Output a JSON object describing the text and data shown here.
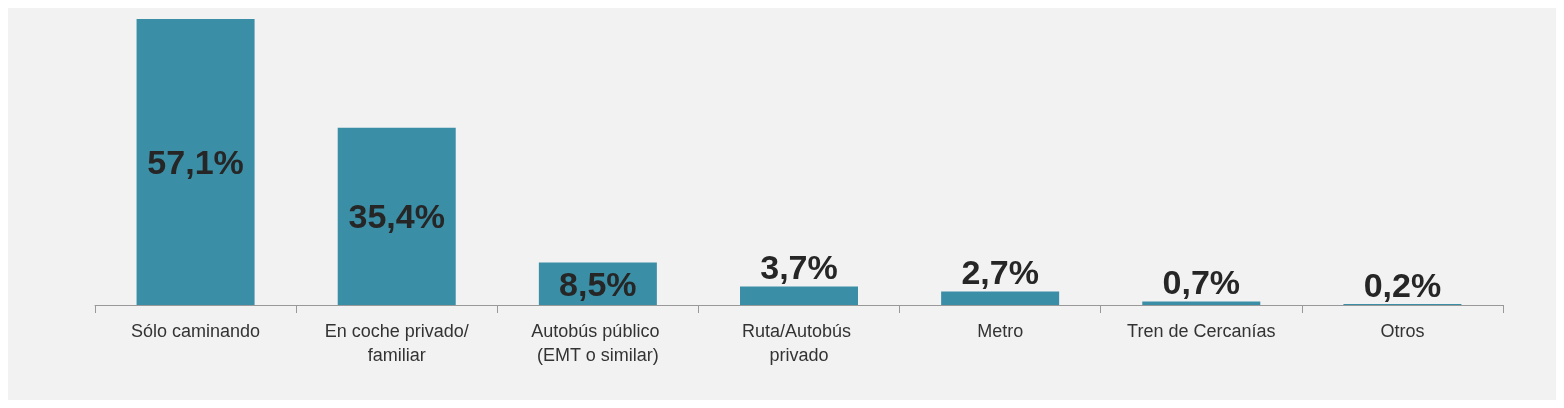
{
  "chart_data": {
    "type": "bar",
    "categories": [
      "Sólo caminando",
      "En coche privado/familiar",
      "Autobús público (EMT o similar)",
      "Ruta/Autobús privado",
      "Metro",
      "Tren de Cercanías",
      "Otros"
    ],
    "values": [
      57.1,
      35.4,
      8.5,
      3.7,
      2.7,
      0.7,
      0.2
    ],
    "value_labels": [
      "57,1%",
      "35,4%",
      "8,5%",
      "3,7%",
      "2,7%",
      "0,7%",
      "0,2%"
    ],
    "color": "#3a8ea6"
  }
}
